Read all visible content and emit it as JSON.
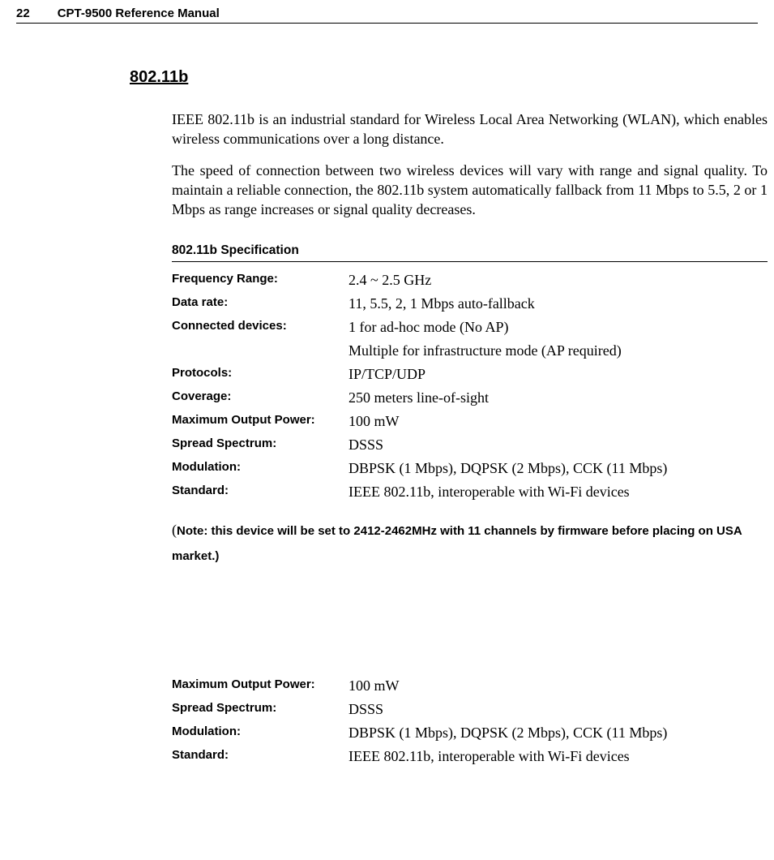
{
  "header": {
    "page_number": "22",
    "title": "CPT-9500 Reference Manual"
  },
  "section": {
    "title": "802.11b",
    "para1": "IEEE 802.11b is an industrial standard for Wireless Local Area Networking (WLAN), which enables wireless communications over a long distance.",
    "para2": "The speed of connection between two wireless devices will vary with range and signal quality. To maintain a reliable connection, the 802.11b system automatically fallback from 11 Mbps to 5.5, 2 or 1 Mbps as range increases or signal quality decreases."
  },
  "spec": {
    "title": "802.11b Specification",
    "rows": [
      {
        "label": "Frequency Range:",
        "value": "2.4 ~ 2.5 GHz"
      },
      {
        "label": "Data rate:",
        "value": "11, 5.5, 2, 1 Mbps auto-fallback"
      },
      {
        "label": "Connected devices:",
        "value": "1 for ad-hoc mode (No AP)"
      },
      {
        "label": "",
        "value": "Multiple for infrastructure mode (AP required)"
      },
      {
        "label": "Protocols:",
        "value": "IP/TCP/UDP"
      },
      {
        "label": "Coverage:",
        "value": "250 meters line-of-sight"
      },
      {
        "label": "Maximum Output Power:",
        "value": "100 mW"
      },
      {
        "label": "Spread Spectrum:",
        "value": "DSSS"
      },
      {
        "label": "Modulation:",
        "value": "DBPSK (1 Mbps), DQPSK (2 Mbps), CCK (11 Mbps)"
      },
      {
        "label": "Standard:",
        "value": "IEEE 802.11b, interoperable with Wi-Fi devices"
      }
    ],
    "note_open": "(",
    "note_text": "Note: this device will be set to 2412-2462MHz with 11 channels by firmware before placing on USA market.)"
  },
  "spec2": {
    "rows": [
      {
        "label": "Maximum Output Power:",
        "value": "100 mW"
      },
      {
        "label": "Spread Spectrum:",
        "value": "DSSS"
      },
      {
        "label": "Modulation:",
        "value": "DBPSK (1 Mbps), DQPSK (2 Mbps), CCK (11 Mbps)"
      },
      {
        "label": "Standard:",
        "value": "IEEE 802.11b, interoperable with Wi-Fi devices"
      }
    ]
  }
}
